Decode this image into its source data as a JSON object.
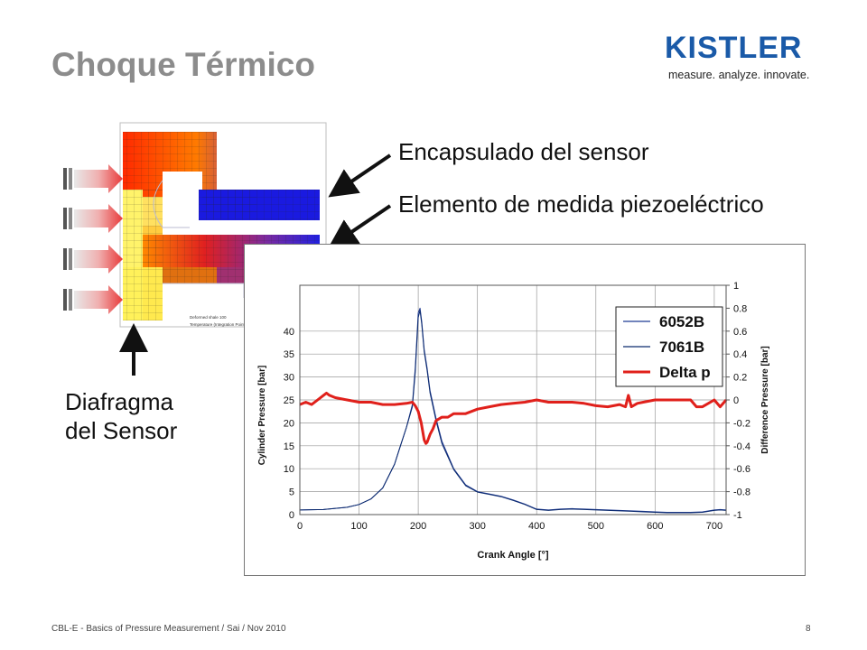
{
  "page": {
    "title": "Choque Térmico",
    "logo_text": "KISTLER",
    "logo_tagline": "measure. analyze. innovate.",
    "label_housing": "Encapsulado del sensor",
    "label_element": "Elemento de medida piezoeléctrico",
    "label_diaphragm_line1": "Diafragma",
    "label_diaphragm_line2": "del Sensor",
    "footer": "CBL-E - Basics of Pressure Measurement / Sai / Nov 2010",
    "page_number": "8",
    "fea_text_1": "Deformed  shale  100",
    "fea_text_2": "Temperature (Integration Point)"
  },
  "colors": {
    "series_6052B": "#1f3a93",
    "series_7061B": "#0b2a6e",
    "series_delta": "#e0201b",
    "logo_blue": "#1a5aa8"
  },
  "chart_data": {
    "type": "line",
    "xlabel": "Crank Angle [°]",
    "ylabel": "Cylinder Pressure [bar]",
    "y2label": "Difference Pressure [bar]",
    "xlim": [
      0,
      720
    ],
    "ylim": [
      0,
      50
    ],
    "y2lim": [
      -1,
      1
    ],
    "x_ticks": [
      "0",
      "100",
      "200",
      "300",
      "400",
      "500",
      "600",
      "700"
    ],
    "y_ticks": [
      "0",
      "5",
      "10",
      "15",
      "20",
      "25",
      "30",
      "35",
      "40"
    ],
    "y2_ticks": [
      "-1",
      "-0.8",
      "-0.6",
      "-0.4",
      "-0.2",
      "0",
      "0.2",
      "0.4",
      "0.6",
      "0.8",
      "1"
    ],
    "grid": true,
    "legend_position": "top-right",
    "series": [
      {
        "name": "6052B",
        "axis": "left",
        "x": [
          0,
          40,
          80,
          100,
          120,
          140,
          160,
          170,
          180,
          190,
          195,
          200,
          203,
          206,
          210,
          215,
          220,
          230,
          240,
          260,
          280,
          300,
          320,
          340,
          360,
          380,
          400,
          420,
          440,
          460,
          480,
          500,
          520,
          540,
          560,
          580,
          600,
          620,
          640,
          660,
          680,
          700,
          710,
          720
        ],
        "values": [
          1,
          1.1,
          1.6,
          2.2,
          3.4,
          5.8,
          11,
          15,
          19,
          24,
          32,
          44,
          45,
          42,
          36,
          32,
          27,
          21,
          16,
          10,
          6.5,
          5,
          4.5,
          4,
          3.2,
          2.3,
          1.2,
          1.0,
          1.2,
          1.3,
          1.2,
          1.1,
          1.0,
          0.9,
          0.8,
          0.7,
          0.6,
          0.5,
          0.5,
          0.5,
          0.6,
          1.0,
          1.1,
          1.0
        ]
      },
      {
        "name": "7061B",
        "axis": "left",
        "x": [
          0,
          40,
          80,
          100,
          120,
          140,
          160,
          170,
          180,
          190,
          195,
          200,
          203,
          206,
          210,
          215,
          220,
          230,
          240,
          260,
          280,
          300,
          320,
          340,
          360,
          380,
          400,
          420,
          440,
          460,
          480,
          500,
          520,
          540,
          560,
          580,
          600,
          620,
          640,
          660,
          680,
          700,
          710,
          720
        ],
        "values": [
          1,
          1.1,
          1.6,
          2.2,
          3.4,
          5.8,
          11,
          15,
          19,
          23.5,
          31,
          43,
          44.5,
          41.5,
          35.5,
          31.5,
          26.5,
          20.5,
          15.5,
          9.8,
          6.3,
          4.9,
          4.4,
          3.9,
          3.1,
          2.2,
          1.1,
          0.9,
          1.1,
          1.2,
          1.1,
          1.0,
          0.9,
          0.8,
          0.7,
          0.6,
          0.5,
          0.4,
          0.4,
          0.4,
          0.5,
          0.9,
          1.0,
          0.9
        ]
      },
      {
        "name": "Delta p",
        "axis": "right",
        "x": [
          0,
          10,
          20,
          30,
          40,
          45,
          50,
          60,
          80,
          100,
          120,
          140,
          160,
          180,
          190,
          195,
          200,
          205,
          210,
          213,
          215,
          220,
          225,
          230,
          240,
          250,
          260,
          280,
          300,
          320,
          340,
          360,
          380,
          400,
          420,
          440,
          460,
          480,
          500,
          520,
          540,
          550,
          555,
          560,
          570,
          580,
          600,
          620,
          640,
          660,
          670,
          680,
          700,
          710,
          720
        ],
        "values": [
          -0.04,
          -0.02,
          -0.04,
          0.0,
          0.04,
          0.06,
          0.04,
          0.02,
          0.0,
          -0.02,
          -0.02,
          -0.04,
          -0.04,
          -0.03,
          -0.02,
          -0.05,
          -0.1,
          -0.2,
          -0.35,
          -0.38,
          -0.37,
          -0.3,
          -0.25,
          -0.18,
          -0.15,
          -0.15,
          -0.12,
          -0.12,
          -0.08,
          -0.06,
          -0.04,
          -0.03,
          -0.02,
          0.0,
          -0.02,
          -0.02,
          -0.02,
          -0.03,
          -0.05,
          -0.06,
          -0.04,
          -0.06,
          0.04,
          -0.06,
          -0.03,
          -0.02,
          0.0,
          0.0,
          0.0,
          0.0,
          -0.06,
          -0.06,
          0.0,
          -0.06,
          0.0
        ]
      }
    ]
  }
}
